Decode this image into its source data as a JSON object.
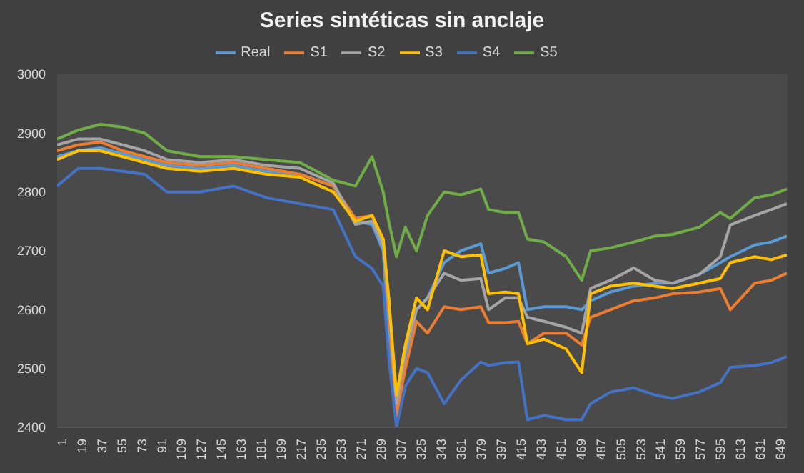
{
  "chart_data": {
    "type": "line",
    "title": "Series sintéticas sin anclaje",
    "legend": "top",
    "grid": false,
    "marker": "none",
    "line_style": "solid",
    "x": [
      1,
      20,
      40,
      60,
      80,
      100,
      130,
      160,
      190,
      220,
      250,
      270,
      285,
      295,
      300,
      307,
      315,
      325,
      335,
      350,
      365,
      383,
      390,
      405,
      417,
      425,
      440,
      460,
      474,
      482,
      500,
      521,
      540,
      556,
      580,
      599,
      608,
      630,
      645,
      659
    ],
    "xlim": [
      1,
      659
    ],
    "xticks": [
      1,
      19,
      37,
      55,
      73,
      91,
      109,
      127,
      145,
      163,
      181,
      199,
      217,
      235,
      253,
      271,
      289,
      307,
      325,
      343,
      361,
      379,
      397,
      415,
      433,
      451,
      469,
      487,
      505,
      523,
      541,
      559,
      577,
      595,
      613,
      631,
      649
    ],
    "ylim": [
      2400,
      3000
    ],
    "yticks": [
      2400,
      2500,
      2600,
      2700,
      2800,
      2900,
      3000
    ],
    "series": [
      {
        "name": "Real",
        "color": "#5b9bd5",
        "values": [
          2860,
          2870,
          2875,
          2865,
          2855,
          2845,
          2840,
          2845,
          2835,
          2830,
          2810,
          2750,
          2745,
          2700,
          2560,
          2430,
          2520,
          2600,
          2620,
          2680,
          2700,
          2712,
          2662,
          2670,
          2680,
          2600,
          2605,
          2605,
          2600,
          2615,
          2630,
          2640,
          2645,
          2645,
          2660,
          2680,
          2690,
          2710,
          2715,
          2725
        ]
      },
      {
        "name": "S1",
        "color": "#ed7d31",
        "values": [
          2870,
          2880,
          2885,
          2870,
          2860,
          2850,
          2845,
          2850,
          2840,
          2830,
          2810,
          2755,
          2760,
          2720,
          2600,
          2420,
          2500,
          2580,
          2560,
          2605,
          2600,
          2605,
          2578,
          2578,
          2580,
          2542,
          2560,
          2560,
          2540,
          2587,
          2600,
          2615,
          2620,
          2627,
          2630,
          2636,
          2600,
          2645,
          2650,
          2662
        ]
      },
      {
        "name": "S2",
        "color": "#a5a5a5",
        "values": [
          2880,
          2890,
          2890,
          2880,
          2870,
          2855,
          2850,
          2855,
          2845,
          2840,
          2815,
          2745,
          2750,
          2710,
          2620,
          2440,
          2530,
          2600,
          2620,
          2662,
          2650,
          2653,
          2600,
          2620,
          2620,
          2587,
          2580,
          2570,
          2560,
          2636,
          2650,
          2671,
          2650,
          2645,
          2660,
          2690,
          2744,
          2760,
          2770,
          2780
        ]
      },
      {
        "name": "S3",
        "color": "#ffc000",
        "values": [
          2855,
          2870,
          2870,
          2860,
          2850,
          2840,
          2835,
          2840,
          2830,
          2825,
          2800,
          2750,
          2760,
          2720,
          2620,
          2455,
          2540,
          2620,
          2600,
          2700,
          2690,
          2693,
          2627,
          2630,
          2627,
          2542,
          2550,
          2533,
          2493,
          2627,
          2640,
          2645,
          2640,
          2636,
          2645,
          2653,
          2680,
          2690,
          2685,
          2693
        ]
      },
      {
        "name": "S4",
        "color": "#4472c4",
        "values": [
          2810,
          2840,
          2840,
          2835,
          2830,
          2800,
          2800,
          2810,
          2790,
          2780,
          2770,
          2690,
          2670,
          2640,
          2520,
          2400,
          2470,
          2500,
          2493,
          2440,
          2480,
          2511,
          2505,
          2510,
          2511,
          2413,
          2420,
          2413,
          2413,
          2440,
          2460,
          2467,
          2455,
          2449,
          2460,
          2476,
          2502,
          2505,
          2510,
          2520
        ]
      },
      {
        "name": "S5",
        "color": "#70ad47",
        "values": [
          2890,
          2905,
          2915,
          2910,
          2900,
          2870,
          2860,
          2860,
          2855,
          2850,
          2820,
          2810,
          2860,
          2800,
          2750,
          2690,
          2740,
          2700,
          2760,
          2800,
          2795,
          2805,
          2770,
          2765,
          2765,
          2720,
          2715,
          2690,
          2650,
          2700,
          2705,
          2715,
          2725,
          2728,
          2740,
          2765,
          2755,
          2790,
          2795,
          2805
        ]
      }
    ]
  }
}
